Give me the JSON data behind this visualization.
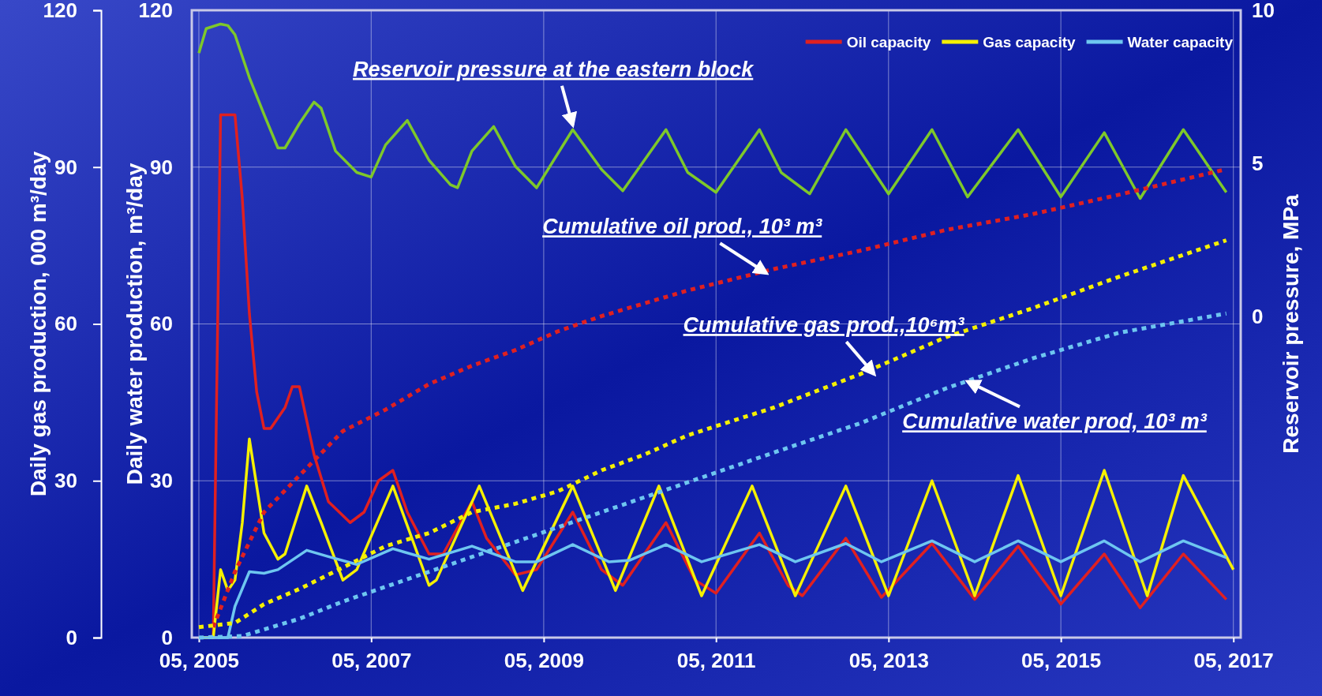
{
  "chart_data": {
    "type": "line",
    "ylabel": "Daily water production, m³/day",
    "y3label": "Daily gas production, 000 m³/day",
    "y2label": "Reservoir pressure, MPa",
    "xlim": [
      "2005-04",
      "2017-06"
    ],
    "xticks": [
      {
        "value": "2005-05",
        "label": "05, 2005"
      },
      {
        "value": "2007-05",
        "label": "05, 2007"
      },
      {
        "value": "2009-05",
        "label": "05, 2009"
      },
      {
        "value": "2011-05",
        "label": "05, 2011"
      },
      {
        "value": "2013-05",
        "label": "05, 2013"
      },
      {
        "value": "2015-05",
        "label": "05, 2015"
      },
      {
        "value": "2017-05",
        "label": "05, 2017"
      }
    ],
    "ylim": [
      0,
      120
    ],
    "yticks": [
      0,
      30,
      60,
      90,
      120
    ],
    "y3lim": [
      0,
      120
    ],
    "y3ticks": [
      0,
      30,
      60,
      90,
      120
    ],
    "y2lim": [
      -10.5,
      10
    ],
    "y2ticks": [
      0,
      5,
      10
    ],
    "grid": true,
    "legend": "top right",
    "marker": "none",
    "series": [
      {
        "name": "Oil capacity",
        "color": "#e02020",
        "line_style": "solid",
        "x": [
          "2005-05",
          "2005-07",
          "2005-08",
          "2005-10",
          "2005-11",
          "2005-12",
          "2006-01",
          "2006-02",
          "2006-03",
          "2006-05",
          "2006-06",
          "2006-07",
          "2006-09",
          "2006-11",
          "2007-02",
          "2007-04",
          "2007-06",
          "2007-08",
          "2007-10",
          "2008-01",
          "2008-03",
          "2008-07",
          "2008-09",
          "2009-01",
          "2009-04",
          "2009-09",
          "2010-01",
          "2010-04",
          "2010-10",
          "2011-02",
          "2011-05",
          "2011-11",
          "2012-03",
          "2012-05",
          "2012-11",
          "2013-04",
          "2013-11",
          "2014-05",
          "2014-11",
          "2015-05",
          "2015-11",
          "2016-04",
          "2016-10",
          "2017-04"
        ],
        "values": [
          0,
          0,
          100,
          100,
          84,
          62,
          47,
          40,
          40,
          44,
          48,
          48,
          35,
          26,
          22,
          24,
          30,
          32,
          24,
          16,
          16,
          26,
          19,
          12,
          13,
          24,
          13,
          10,
          22,
          11,
          8.5,
          20,
          10,
          8,
          19,
          7.7,
          18,
          7.3,
          17.5,
          6.4,
          16,
          5.7,
          16,
          7.3
        ]
      },
      {
        "name": "Gas capacity",
        "color": "#f5f000",
        "axis": "y3",
        "line_style": "solid",
        "x": [
          "2005-05",
          "2005-07",
          "2005-08",
          "2005-09",
          "2005-10",
          "2005-11",
          "2005-12",
          "2006-01",
          "2006-02",
          "2006-04",
          "2006-05",
          "2006-08",
          "2006-10",
          "2007-01",
          "2007-03",
          "2007-08",
          "2008-01",
          "2008-02",
          "2008-08",
          "2009-02",
          "2009-09",
          "2010-03",
          "2010-09",
          "2011-03",
          "2011-10",
          "2012-04",
          "2012-11",
          "2013-05",
          "2013-11",
          "2014-05",
          "2014-11",
          "2015-05",
          "2015-11",
          "2016-05",
          "2016-10",
          "2017-05"
        ],
        "values": [
          0,
          0,
          13,
          9,
          11,
          22,
          38,
          29,
          20,
          15,
          16,
          29,
          22,
          11,
          13,
          29,
          10,
          11,
          29,
          9,
          29,
          9,
          29,
          8,
          29,
          8,
          29,
          8,
          30,
          8,
          31,
          8,
          32,
          8,
          31,
          13
        ]
      },
      {
        "name": "Water capacity",
        "color": "#6ec6f0",
        "line_style": "solid",
        "x": [
          "2005-05",
          "2005-09",
          "2005-10",
          "2005-12",
          "2006-02",
          "2006-04",
          "2006-08",
          "2006-11",
          "2007-03",
          "2007-08",
          "2008-01",
          "2008-07",
          "2009-01",
          "2009-04",
          "2009-09",
          "2010-02",
          "2010-05",
          "2010-10",
          "2011-03",
          "2011-11",
          "2012-04",
          "2012-11",
          "2013-04",
          "2013-11",
          "2014-05",
          "2014-11",
          "2015-05",
          "2015-11",
          "2016-04",
          "2016-10",
          "2017-04"
        ],
        "values": [
          0,
          0,
          6,
          12.6,
          12.3,
          13,
          16.7,
          15.5,
          14,
          17,
          15,
          17.5,
          14.5,
          14.5,
          17.8,
          14.5,
          14.8,
          17.8,
          14.5,
          17.8,
          14.5,
          18,
          14.5,
          18.5,
          14.5,
          18.5,
          14.5,
          18.5,
          14.5,
          18.5,
          15.3
        ]
      },
      {
        "color": "#7ec82a",
        "axis": "y2",
        "line_style": "solid",
        "x": [
          "2005-05",
          "2005-06",
          "2005-08",
          "2005-09",
          "2005-10",
          "2005-12",
          "2006-02",
          "2006-04",
          "2006-05",
          "2006-07",
          "2006-09",
          "2006-10",
          "2006-12",
          "2007-03",
          "2007-05",
          "2007-07",
          "2007-10",
          "2008-01",
          "2008-04",
          "2008-05",
          "2008-07",
          "2008-10",
          "2009-01",
          "2009-04",
          "2009-09",
          "2010-01",
          "2010-04",
          "2010-10",
          "2011-01",
          "2011-05",
          "2011-11",
          "2012-02",
          "2012-06",
          "2012-11",
          "2013-05",
          "2013-11",
          "2014-04",
          "2014-11",
          "2015-05",
          "2015-11",
          "2016-04",
          "2016-10",
          "2017-04"
        ],
        "values": [
          8.6,
          9.4,
          9.55,
          9.5,
          9.2,
          7.8,
          6.6,
          5.5,
          5.5,
          6.3,
          7.0,
          6.8,
          5.4,
          4.7,
          4.55,
          5.6,
          6.4,
          5.1,
          4.3,
          4.2,
          5.4,
          6.2,
          4.9,
          4.2,
          6.1,
          4.8,
          4.1,
          6.1,
          4.7,
          4.05,
          6.1,
          4.7,
          4.0,
          6.1,
          4.0,
          6.1,
          3.9,
          6.1,
          3.9,
          6.0,
          3.85,
          6.1,
          4.05
        ]
      },
      {
        "color": "#e02020",
        "line_style": "dotted",
        "x": [
          "2005-07",
          "2005-10",
          "2006-02",
          "2006-07",
          "2007-01",
          "2007-07",
          "2008-01",
          "2008-07",
          "2009-01",
          "2009-07",
          "2010-01",
          "2011-01",
          "2012-01",
          "2013-01",
          "2014-01",
          "2015-01",
          "2016-01",
          "2017-04"
        ],
        "values": [
          2,
          12.6,
          24,
          31,
          39.5,
          43.6,
          48.5,
          52,
          55,
          58.6,
          61.5,
          66.4,
          70.5,
          74,
          78,
          81,
          84.7,
          89.6
        ]
      },
      {
        "color": "#f5f000",
        "line_style": "dotted",
        "x": [
          "2005-05",
          "2005-10",
          "2006-02",
          "2006-07",
          "2007-01",
          "2007-07",
          "2008-01",
          "2008-07",
          "2009-01",
          "2009-07",
          "2010-01",
          "2010-07",
          "2011-01",
          "2012-01",
          "2013-01",
          "2014-01",
          "2015-01",
          "2016-01",
          "2017-04"
        ],
        "values": [
          2,
          2.8,
          6.4,
          9.3,
          13.4,
          17.5,
          20,
          24,
          25.6,
          28,
          32,
          35,
          38.7,
          44,
          50.4,
          57.5,
          63,
          69,
          76
        ]
      },
      {
        "color": "#6ec6f0",
        "line_style": "dotted",
        "x": [
          "2005-05",
          "2005-11",
          "2006-07",
          "2007-01",
          "2008-01",
          "2009-01",
          "2010-01",
          "2011-01",
          "2012-01",
          "2013-01",
          "2014-01",
          "2015-01",
          "2016-01",
          "2017-04"
        ],
        "values": [
          0,
          0.3,
          3.6,
          6.9,
          12.6,
          18.3,
          24,
          29.7,
          35.4,
          41,
          47.7,
          53.4,
          58.3,
          62
        ]
      }
    ],
    "annotations": [
      {
        "text": "Reservoir pressure at the eastern block",
        "x": "2009-09",
        "y": 98
      },
      {
        "text": "Cumulative oil prod., 10³ m³",
        "x": "2011-12",
        "y": 69.7
      },
      {
        "text": "Cumulative gas prod.,10⁶m³",
        "x": "2013-03",
        "y": 50.4
      },
      {
        "text": "Cumulative water prod, 10³ m³",
        "x": "2014-04",
        "y": 49
      }
    ]
  }
}
